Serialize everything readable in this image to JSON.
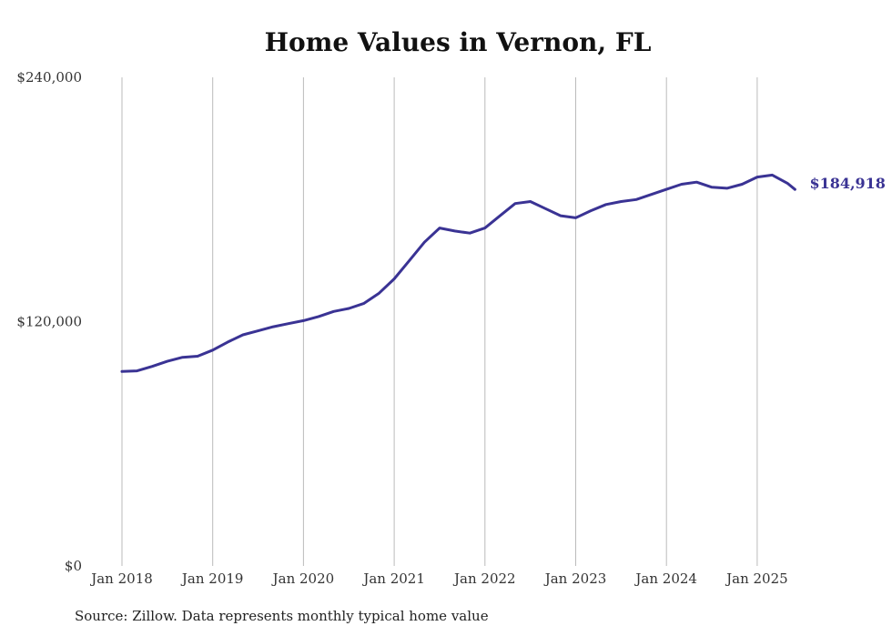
{
  "title": "Home Values in Vernon, FL",
  "source": "Source: Zillow. Data represents monthly typical home value",
  "colors": {
    "line": "#3a3394",
    "grid": "#bbbbbb"
  },
  "chart_data": {
    "type": "line",
    "title": "Home Values in Vernon, FL",
    "xlabel": "",
    "ylabel": "",
    "ylim": [
      0,
      240000
    ],
    "y_ticks": [
      {
        "value": 0,
        "label": "$0"
      },
      {
        "value": 120000,
        "label": "$120,000"
      },
      {
        "value": 240000,
        "label": "$240,000"
      }
    ],
    "x_ticks": [
      {
        "date": "2018-01",
        "label": "Jan 2018"
      },
      {
        "date": "2019-01",
        "label": "Jan 2019"
      },
      {
        "date": "2020-01",
        "label": "Jan 2020"
      },
      {
        "date": "2021-01",
        "label": "Jan 2021"
      },
      {
        "date": "2022-01",
        "label": "Jan 2022"
      },
      {
        "date": "2023-01",
        "label": "Jan 2023"
      },
      {
        "date": "2024-01",
        "label": "Jan 2024"
      },
      {
        "date": "2025-01",
        "label": "Jan 2025"
      }
    ],
    "x_grid": true,
    "end_label": "$184,918",
    "series": [
      {
        "points": [
          [
            "2018-01",
            95500
          ],
          [
            "2018-03",
            95800
          ],
          [
            "2018-05",
            98000
          ],
          [
            "2018-07",
            100500
          ],
          [
            "2018-09",
            102500
          ],
          [
            "2018-11",
            103000
          ],
          [
            "2019-01",
            106000
          ],
          [
            "2019-03",
            110000
          ],
          [
            "2019-05",
            113500
          ],
          [
            "2019-07",
            115500
          ],
          [
            "2019-09",
            117500
          ],
          [
            "2019-11",
            119000
          ],
          [
            "2020-01",
            120500
          ],
          [
            "2020-03",
            122500
          ],
          [
            "2020-05",
            125000
          ],
          [
            "2020-07",
            126500
          ],
          [
            "2020-09",
            129000
          ],
          [
            "2020-11",
            134000
          ],
          [
            "2021-01",
            141000
          ],
          [
            "2021-03",
            150000
          ],
          [
            "2021-05",
            159000
          ],
          [
            "2021-07",
            166000
          ],
          [
            "2021-09",
            164500
          ],
          [
            "2021-11",
            163500
          ],
          [
            "2022-01",
            166000
          ],
          [
            "2022-03",
            172000
          ],
          [
            "2022-05",
            178000
          ],
          [
            "2022-07",
            179000
          ],
          [
            "2022-09",
            175500
          ],
          [
            "2022-11",
            172000
          ],
          [
            "2023-01",
            171000
          ],
          [
            "2023-03",
            174500
          ],
          [
            "2023-05",
            177500
          ],
          [
            "2023-07",
            179000
          ],
          [
            "2023-09",
            180000
          ],
          [
            "2023-11",
            182500
          ],
          [
            "2024-01",
            185000
          ],
          [
            "2024-03",
            187500
          ],
          [
            "2024-05",
            188500
          ],
          [
            "2024-07",
            186000
          ],
          [
            "2024-09",
            185500
          ],
          [
            "2024-11",
            187500
          ],
          [
            "2025-01",
            191000
          ],
          [
            "2025-03",
            192000
          ],
          [
            "2025-05",
            188000
          ],
          [
            "2025-06",
            184918
          ]
        ]
      }
    ]
  }
}
